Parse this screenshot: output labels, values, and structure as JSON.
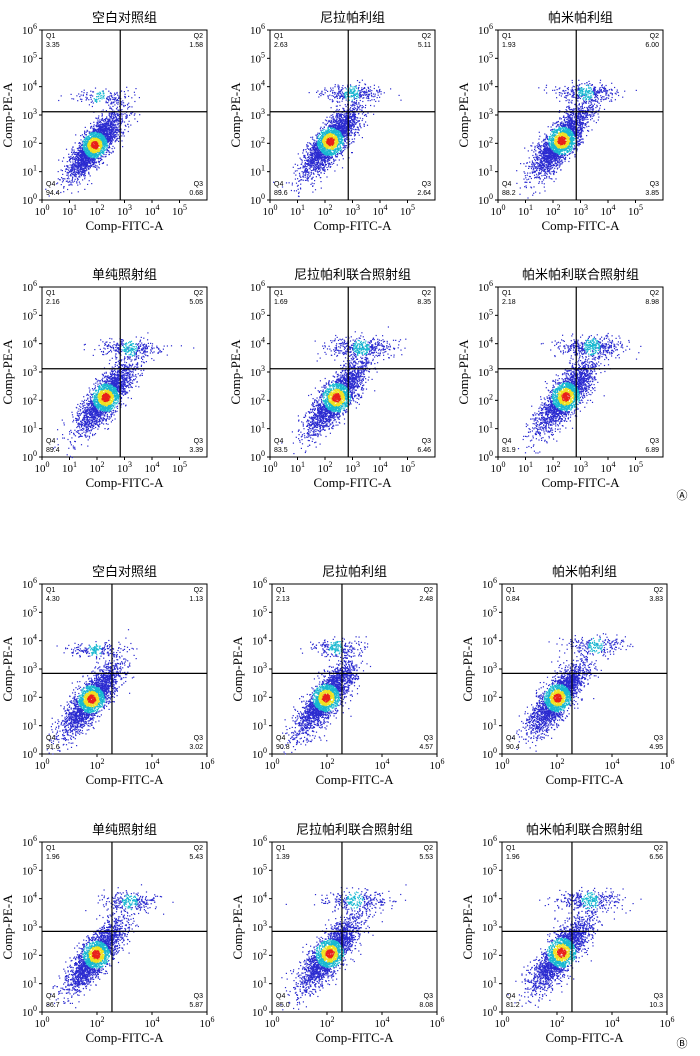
{
  "figure": {
    "panels": [
      {
        "label": "Ⓐ"
      },
      {
        "label": "Ⓑ"
      }
    ]
  },
  "colors": {
    "quadrant_line": "#000000",
    "dot_sparse": "#2b2bd0",
    "dot_mid": "#18b8d0",
    "dot_dense": "#f0e020",
    "dot_core": "#e8201a"
  },
  "chart_data": [
    {
      "type": "scatter",
      "panel": "A",
      "title": "空白对照组",
      "xlabel": "Comp-FITC-A",
      "ylabel": "Comp-PE-A",
      "xticks": [
        "10^0",
        "10^1",
        "10^2",
        "10^3",
        "10^4",
        "10^5"
      ],
      "yticks": [
        "10^0",
        "10^1",
        "10^2",
        "10^3",
        "10^4",
        "10^5",
        "10^6"
      ],
      "xlim": [
        1,
        1000000
      ],
      "ylim": [
        1,
        1000000
      ],
      "gate": {
        "x": 700,
        "y": 1300
      },
      "quadrants": {
        "Q1": "3.35",
        "Q2": "1.58",
        "Q3": "0.68",
        "Q4": "94.4"
      },
      "clusters": [
        {
          "x": 80,
          "y": 90,
          "n": 2600,
          "spread": 0.42
        },
        {
          "x": 120,
          "y": 4500,
          "n": 140,
          "spread": 0.3
        }
      ]
    },
    {
      "type": "scatter",
      "panel": "A",
      "title": "尼拉帕利组",
      "xlabel": "Comp-FITC-A",
      "ylabel": "Comp-PE-A",
      "xticks": [
        "10^0",
        "10^1",
        "10^2",
        "10^3",
        "10^4",
        "10^5"
      ],
      "yticks": [
        "10^0",
        "10^1",
        "10^2",
        "10^3",
        "10^4",
        "10^5",
        "10^6"
      ],
      "xlim": [
        1,
        1000000
      ],
      "ylim": [
        1,
        1000000
      ],
      "gate": {
        "x": 700,
        "y": 1300
      },
      "quadrants": {
        "Q1": "2.63",
        "Q2": "5.11",
        "Q3": "2.64",
        "Q4": "89.6"
      },
      "clusters": [
        {
          "x": 150,
          "y": 120,
          "n": 2500,
          "spread": 0.45
        },
        {
          "x": 900,
          "y": 6000,
          "n": 300,
          "spread": 0.35
        }
      ]
    },
    {
      "type": "scatter",
      "panel": "A",
      "title": "帕米帕利组",
      "xlabel": "Comp-FITC-A",
      "ylabel": "Comp-PE-A",
      "xticks": [
        "10^0",
        "10^1",
        "10^2",
        "10^3",
        "10^4",
        "10^5"
      ],
      "yticks": [
        "10^0",
        "10^1",
        "10^2",
        "10^3",
        "10^4",
        "10^5",
        "10^6"
      ],
      "xlim": [
        1,
        1000000
      ],
      "ylim": [
        1,
        1000000
      ],
      "gate": {
        "x": 700,
        "y": 1300
      },
      "quadrants": {
        "Q1": "1.93",
        "Q2": "6.00",
        "Q3": "3.85",
        "Q4": "88.2"
      },
      "clusters": [
        {
          "x": 200,
          "y": 130,
          "n": 2500,
          "spread": 0.45
        },
        {
          "x": 1500,
          "y": 6500,
          "n": 330,
          "spread": 0.35
        }
      ]
    },
    {
      "type": "scatter",
      "panel": "A",
      "title": "单纯照射组",
      "xlabel": "Comp-FITC-A",
      "ylabel": "Comp-PE-A",
      "xticks": [
        "10^0",
        "10^1",
        "10^2",
        "10^3",
        "10^4",
        "10^5"
      ],
      "yticks": [
        "10^0",
        "10^1",
        "10^2",
        "10^3",
        "10^4",
        "10^5",
        "10^6"
      ],
      "xlim": [
        1,
        1000000
      ],
      "ylim": [
        1,
        1000000
      ],
      "gate": {
        "x": 700,
        "y": 1300
      },
      "quadrants": {
        "Q1": "2.16",
        "Q2": "5.05",
        "Q3": "3.39",
        "Q4": "89.4"
      },
      "clusters": [
        {
          "x": 200,
          "y": 130,
          "n": 2400,
          "spread": 0.45
        },
        {
          "x": 1500,
          "y": 7000,
          "n": 300,
          "spread": 0.35
        }
      ]
    },
    {
      "type": "scatter",
      "panel": "A",
      "title": "尼拉帕利联合照射组",
      "xlabel": "Comp-FITC-A",
      "ylabel": "Comp-PE-A",
      "xticks": [
        "10^0",
        "10^1",
        "10^2",
        "10^3",
        "10^4",
        "10^5"
      ],
      "yticks": [
        "10^0",
        "10^1",
        "10^2",
        "10^3",
        "10^4",
        "10^5",
        "10^6"
      ],
      "xlim": [
        1,
        1000000
      ],
      "ylim": [
        1,
        1000000
      ],
      "gate": {
        "x": 700,
        "y": 1300
      },
      "quadrants": {
        "Q1": "1.69",
        "Q2": "8.35",
        "Q3": "6.46",
        "Q4": "83.5"
      },
      "clusters": [
        {
          "x": 250,
          "y": 130,
          "n": 2300,
          "spread": 0.47
        },
        {
          "x": 2000,
          "y": 7500,
          "n": 420,
          "spread": 0.38
        }
      ]
    },
    {
      "type": "scatter",
      "panel": "A",
      "title": "帕米帕利联合照射组",
      "xlabel": "Comp-FITC-A",
      "ylabel": "Comp-PE-A",
      "xticks": [
        "10^0",
        "10^1",
        "10^2",
        "10^3",
        "10^4",
        "10^5"
      ],
      "yticks": [
        "10^0",
        "10^1",
        "10^2",
        "10^3",
        "10^4",
        "10^5",
        "10^6"
      ],
      "xlim": [
        1,
        1000000
      ],
      "ylim": [
        1,
        1000000
      ],
      "gate": {
        "x": 700,
        "y": 1300
      },
      "quadrants": {
        "Q1": "2.18",
        "Q2": "8.98",
        "Q3": "6.89",
        "Q4": "81.9"
      },
      "clusters": [
        {
          "x": 280,
          "y": 140,
          "n": 2300,
          "spread": 0.47
        },
        {
          "x": 2500,
          "y": 8000,
          "n": 440,
          "spread": 0.38
        }
      ]
    },
    {
      "type": "scatter",
      "panel": "B",
      "title": "空白对照组",
      "xlabel": "Comp-FITC-A",
      "ylabel": "Comp-PE-A",
      "xticks": [
        "10^0",
        "10^2",
        "10^4",
        "10^6"
      ],
      "yticks": [
        "10^0",
        "10^1",
        "10^2",
        "10^3",
        "10^4",
        "10^5",
        "10^6"
      ],
      "xlim": [
        1,
        1000000
      ],
      "ylim": [
        1,
        1000000
      ],
      "gate": {
        "x": 350,
        "y": 700
      },
      "quadrants": {
        "Q1": "4.30",
        "Q2": "1.13",
        "Q3": "3.02",
        "Q4": "91.6"
      },
      "clusters": [
        {
          "x": 60,
          "y": 90,
          "n": 2400,
          "spread": 0.45
        },
        {
          "x": 80,
          "y": 5000,
          "n": 180,
          "spread": 0.3
        }
      ]
    },
    {
      "type": "scatter",
      "panel": "B",
      "title": "尼拉帕利组",
      "xlabel": "Comp-FITC-A",
      "ylabel": "Comp-PE-A",
      "xticks": [
        "10^0",
        "10^2",
        "10^4",
        "10^6"
      ],
      "yticks": [
        "10^0",
        "10^1",
        "10^2",
        "10^3",
        "10^4",
        "10^5",
        "10^6"
      ],
      "xlim": [
        1,
        1000000
      ],
      "ylim": [
        1,
        1000000
      ],
      "gate": {
        "x": 350,
        "y": 700
      },
      "quadrants": {
        "Q1": "2.13",
        "Q2": "2.48",
        "Q3": "4.57",
        "Q4": "90.8"
      },
      "clusters": [
        {
          "x": 90,
          "y": 100,
          "n": 2400,
          "spread": 0.45
        },
        {
          "x": 200,
          "y": 6000,
          "n": 200,
          "spread": 0.33
        }
      ]
    },
    {
      "type": "scatter",
      "panel": "B",
      "title": "帕米帕利组",
      "xlabel": "Comp-FITC-A",
      "ylabel": "Comp-PE-A",
      "xticks": [
        "10^0",
        "10^2",
        "10^4",
        "10^6"
      ],
      "yticks": [
        "10^0",
        "10^1",
        "10^2",
        "10^3",
        "10^4",
        "10^5",
        "10^6"
      ],
      "xlim": [
        1,
        1000000
      ],
      "ylim": [
        1,
        1000000
      ],
      "gate": {
        "x": 350,
        "y": 700
      },
      "quadrants": {
        "Q1": "0.84",
        "Q2": "3.83",
        "Q3": "4.95",
        "Q4": "90.4"
      },
      "clusters": [
        {
          "x": 100,
          "y": 100,
          "n": 2400,
          "spread": 0.45
        },
        {
          "x": 2500,
          "y": 7000,
          "n": 220,
          "spread": 0.35
        }
      ]
    },
    {
      "type": "scatter",
      "panel": "B",
      "title": "单纯照射组",
      "xlabel": "Comp-FITC-A",
      "ylabel": "Comp-PE-A",
      "xticks": [
        "10^0",
        "10^2",
        "10^4",
        "10^6"
      ],
      "yticks": [
        "10^0",
        "10^1",
        "10^2",
        "10^3",
        "10^4",
        "10^5",
        "10^6"
      ],
      "xlim": [
        1,
        1000000
      ],
      "ylim": [
        1,
        1000000
      ],
      "gate": {
        "x": 350,
        "y": 700
      },
      "quadrants": {
        "Q1": "1.96",
        "Q2": "5.43",
        "Q3": "5.87",
        "Q4": "86.7"
      },
      "clusters": [
        {
          "x": 90,
          "y": 110,
          "n": 2300,
          "spread": 0.45
        },
        {
          "x": 1500,
          "y": 8000,
          "n": 260,
          "spread": 0.35
        }
      ]
    },
    {
      "type": "scatter",
      "panel": "B",
      "title": "尼拉帕利联合照射组",
      "xlabel": "Comp-FITC-A",
      "ylabel": "Comp-PE-A",
      "xticks": [
        "10^0",
        "10^2",
        "10^4",
        "10^6"
      ],
      "yticks": [
        "10^0",
        "10^1",
        "10^2",
        "10^3",
        "10^4",
        "10^5",
        "10^6"
      ],
      "xlim": [
        1,
        1000000
      ],
      "ylim": [
        1,
        1000000
      ],
      "gate": {
        "x": 350,
        "y": 700
      },
      "quadrants": {
        "Q1": "1.39",
        "Q2": "5.53",
        "Q3": "8.08",
        "Q4": "85.0"
      },
      "clusters": [
        {
          "x": 120,
          "y": 120,
          "n": 2300,
          "spread": 0.47
        },
        {
          "x": 1000,
          "y": 9000,
          "n": 280,
          "spread": 0.38
        }
      ]
    },
    {
      "type": "scatter",
      "panel": "B",
      "title": "帕米帕利联合照射组",
      "xlabel": "Comp-FITC-A",
      "ylabel": "Comp-PE-A",
      "xticks": [
        "10^0",
        "10^2",
        "10^4",
        "10^6"
      ],
      "yticks": [
        "10^0",
        "10^1",
        "10^2",
        "10^3",
        "10^4",
        "10^5",
        "10^6"
      ],
      "xlim": [
        1,
        1000000
      ],
      "ylim": [
        1,
        1000000
      ],
      "gate": {
        "x": 350,
        "y": 700
      },
      "quadrants": {
        "Q1": "1.96",
        "Q2": "6.56",
        "Q3": "10.3",
        "Q4": "81.2"
      },
      "clusters": [
        {
          "x": 140,
          "y": 130,
          "n": 2200,
          "spread": 0.48
        },
        {
          "x": 1500,
          "y": 9000,
          "n": 330,
          "spread": 0.4
        }
      ]
    }
  ]
}
